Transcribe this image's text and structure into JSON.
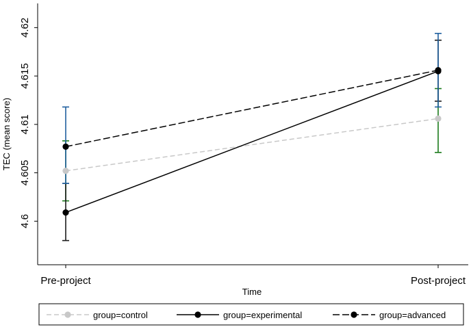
{
  "chart_data": {
    "type": "line",
    "xlabel": "Time",
    "ylabel": "TEC (mean score)",
    "categories": [
      "Pre-project",
      "Post-project"
    ],
    "ylim": [
      4.5955,
      4.6225
    ],
    "yticks": [
      "4.6",
      "4.605",
      "4.61",
      "4.615",
      "4.62"
    ],
    "grid": false,
    "legend_position": "bottom",
    "series": [
      {
        "name": "group=control",
        "values": [
          4.6052,
          4.6106
        ],
        "ci": [
          [
            4.6021,
            4.6083
          ],
          [
            4.6071,
            4.6137
          ]
        ],
        "line_color": "#c8c8c8",
        "marker_color": "#c8c8c8",
        "ci_color": "#1a7a1a",
        "dash": "dashed"
      },
      {
        "name": "group=experimental",
        "values": [
          4.6009,
          4.6155
        ],
        "ci": [
          [
            4.598,
            4.6039
          ],
          [
            4.6124,
            4.6187
          ]
        ],
        "line_color": "#000000",
        "marker_color": "#000000",
        "ci_color": "#1a1a1a",
        "dash": "solid"
      },
      {
        "name": "group=advanced",
        "values": [
          4.6077,
          4.6156
        ],
        "ci": [
          [
            4.6039,
            4.6118
          ],
          [
            4.6118,
            4.6194
          ]
        ],
        "line_color": "#000000",
        "marker_color": "#000000",
        "ci_color": "#1f5f9f",
        "dash": "longdash"
      }
    ]
  }
}
